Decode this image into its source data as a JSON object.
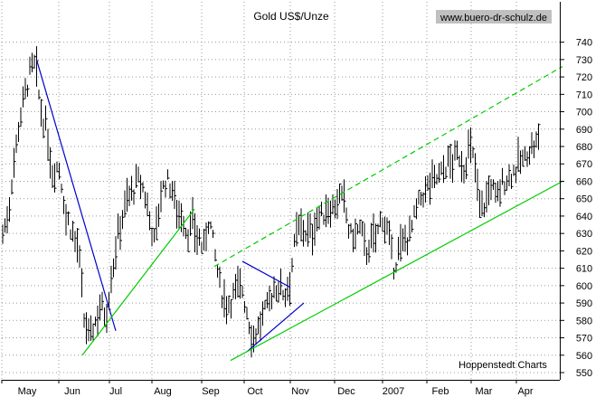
{
  "chart_data": {
    "type": "ohlc",
    "title": "Gold US$/Unze",
    "watermark": "www.buero-dr-schulz.de",
    "source_note": "Hoppenstedt Charts",
    "xlabel": "",
    "ylabel": "",
    "ylim": [
      548,
      744
    ],
    "yticks": [
      550,
      560,
      570,
      580,
      590,
      600,
      610,
      620,
      630,
      640,
      650,
      660,
      670,
      680,
      690,
      700,
      710,
      720,
      730,
      740
    ],
    "month_labels": [
      "May",
      "Jun",
      "Jul",
      "Aug",
      "Sep",
      "Oct",
      "Nov",
      "Dec",
      "2007",
      "Feb",
      "Mar",
      "Apr"
    ],
    "grid": true,
    "colors": {
      "bars": "#000000",
      "grid": "#999999",
      "downtrend": "#0000cc",
      "uptrend": "#00cc00",
      "watermark_bg": "#c0c0c0"
    },
    "price_path": [
      [
        0,
        630
      ],
      [
        6,
        640
      ],
      [
        12,
        670
      ],
      [
        20,
        700
      ],
      [
        30,
        722
      ],
      [
        36,
        728
      ],
      [
        42,
        700
      ],
      [
        48,
        690
      ],
      [
        55,
        665
      ],
      [
        62,
        670
      ],
      [
        70,
        640
      ],
      [
        78,
        630
      ],
      [
        84,
        620
      ],
      [
        90,
        580
      ],
      [
        96,
        570
      ],
      [
        102,
        578
      ],
      [
        108,
        590
      ],
      [
        114,
        582
      ],
      [
        120,
        605
      ],
      [
        126,
        625
      ],
      [
        132,
        640
      ],
      [
        138,
        650
      ],
      [
        144,
        655
      ],
      [
        150,
        660
      ],
      [
        156,
        655
      ],
      [
        162,
        640
      ],
      [
        168,
        625
      ],
      [
        174,
        650
      ],
      [
        180,
        660
      ],
      [
        186,
        658
      ],
      [
        192,
        645
      ],
      [
        198,
        640
      ],
      [
        204,
        630
      ],
      [
        210,
        635
      ],
      [
        216,
        628
      ],
      [
        222,
        620
      ],
      [
        228,
        640
      ],
      [
        234,
        620
      ],
      [
        240,
        600
      ],
      [
        246,
        590
      ],
      [
        252,
        592
      ],
      [
        258,
        598
      ],
      [
        264,
        600
      ],
      [
        270,
        585
      ],
      [
        276,
        570
      ],
      [
        282,
        575
      ],
      [
        288,
        582
      ],
      [
        294,
        590
      ],
      [
        300,
        598
      ],
      [
        306,
        600
      ],
      [
        312,
        595
      ],
      [
        318,
        605
      ],
      [
        324,
        628
      ],
      [
        330,
        635
      ],
      [
        336,
        630
      ],
      [
        342,
        630
      ],
      [
        348,
        640
      ],
      [
        354,
        640
      ],
      [
        360,
        645
      ],
      [
        366,
        645
      ],
      [
        372,
        650
      ],
      [
        378,
        648
      ],
      [
        384,
        628
      ],
      [
        390,
        630
      ],
      [
        396,
        632
      ],
      [
        402,
        620
      ],
      [
        408,
        625
      ],
      [
        414,
        630
      ],
      [
        420,
        640
      ],
      [
        426,
        630
      ],
      [
        432,
        610
      ],
      [
        438,
        620
      ],
      [
        444,
        625
      ],
      [
        450,
        630
      ],
      [
        456,
        640
      ],
      [
        462,
        650
      ],
      [
        468,
        655
      ],
      [
        474,
        660
      ],
      [
        480,
        662
      ],
      [
        486,
        665
      ],
      [
        492,
        670
      ],
      [
        498,
        672
      ],
      [
        504,
        675
      ],
      [
        510,
        668
      ],
      [
        516,
        680
      ],
      [
        522,
        670
      ],
      [
        528,
        645
      ],
      [
        534,
        648
      ],
      [
        540,
        658
      ],
      [
        546,
        650
      ],
      [
        552,
        658
      ],
      [
        558,
        662
      ],
      [
        564,
        665
      ],
      [
        570,
        670
      ],
      [
        576,
        672
      ],
      [
        582,
        678
      ],
      [
        588,
        680
      ],
      [
        594,
        684
      ]
    ],
    "trendlines": [
      {
        "color": "downtrend",
        "points": [
          [
            38,
            729
          ],
          [
            125,
            574
          ]
        ]
      },
      {
        "color": "uptrend",
        "points": [
          [
            88,
            560
          ],
          [
            212,
            644
          ]
        ]
      },
      {
        "color": "downtrend",
        "points": [
          [
            265,
            614
          ],
          [
            318,
            599
          ]
        ]
      },
      {
        "color": "downtrend",
        "points": [
          [
            270,
            562
          ],
          [
            333,
            590
          ]
        ]
      },
      {
        "color": "uptrend",
        "points": [
          [
            252,
            557
          ],
          [
            619,
            660
          ]
        ]
      },
      {
        "color": "uptrend",
        "dashed": true,
        "points": [
          [
            234,
            611
          ],
          [
            619,
            726
          ]
        ]
      }
    ]
  }
}
